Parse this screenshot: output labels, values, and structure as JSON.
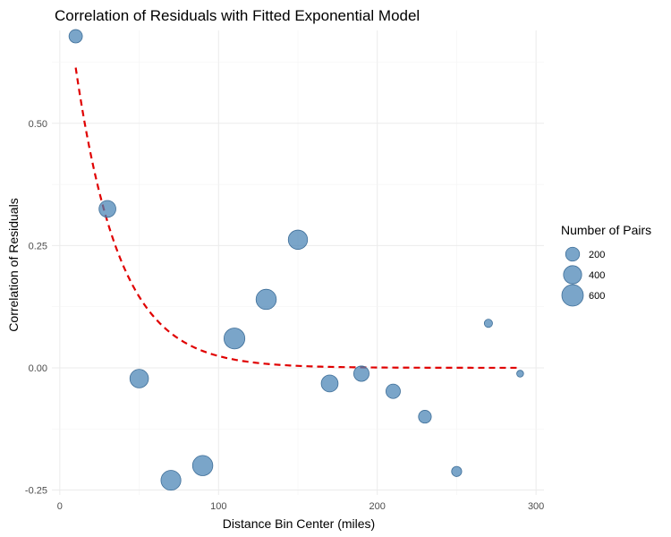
{
  "chart_data": {
    "type": "scatter",
    "title": "Correlation of Residuals with Fitted Exponential Model",
    "xlabel": "Distance Bin Center (miles)",
    "ylabel": "Correlation of Residuals",
    "xlim": [
      -5,
      305
    ],
    "ylim": [
      -0.26,
      0.69
    ],
    "x_ticks": [
      0,
      100,
      200,
      300
    ],
    "x_tick_labels": [
      "0",
      "100",
      "200",
      "300"
    ],
    "y_ticks": [
      -0.25,
      0,
      0.25,
      0.5
    ],
    "y_tick_labels": [
      "-0.25",
      "0.00",
      "0.25",
      "0.50"
    ],
    "grid": true,
    "point_color": "#4682B4",
    "point_edge_color": "#3E6E98",
    "fit_color": "#E00000",
    "points": [
      {
        "x": 10,
        "y": 0.678,
        "n": 180
      },
      {
        "x": 30,
        "y": 0.325,
        "n": 330
      },
      {
        "x": 50,
        "y": -0.022,
        "n": 420
      },
      {
        "x": 70,
        "y": -0.23,
        "n": 500
      },
      {
        "x": 90,
        "y": -0.2,
        "n": 520
      },
      {
        "x": 110,
        "y": 0.06,
        "n": 560
      },
      {
        "x": 130,
        "y": 0.14,
        "n": 520
      },
      {
        "x": 150,
        "y": 0.262,
        "n": 460
      },
      {
        "x": 170,
        "y": -0.032,
        "n": 330
      },
      {
        "x": 190,
        "y": -0.012,
        "n": 260
      },
      {
        "x": 210,
        "y": -0.048,
        "n": 220
      },
      {
        "x": 230,
        "y": -0.1,
        "n": 160
      },
      {
        "x": 250,
        "y": -0.212,
        "n": 80
      },
      {
        "x": 270,
        "y": 0.091,
        "n": 40
      },
      {
        "x": 290,
        "y": -0.012,
        "n": 20
      }
    ],
    "fit": {
      "type": "exponential",
      "label": "",
      "a": 0.88,
      "b": 0.036,
      "x_start": 10,
      "x_end": 288
    },
    "legend": {
      "title": "Number of Pairs",
      "placement": "right",
      "entries": [
        {
          "label": "200",
          "n": 200
        },
        {
          "label": "400",
          "n": 400
        },
        {
          "label": "600",
          "n": 600
        }
      ]
    }
  }
}
